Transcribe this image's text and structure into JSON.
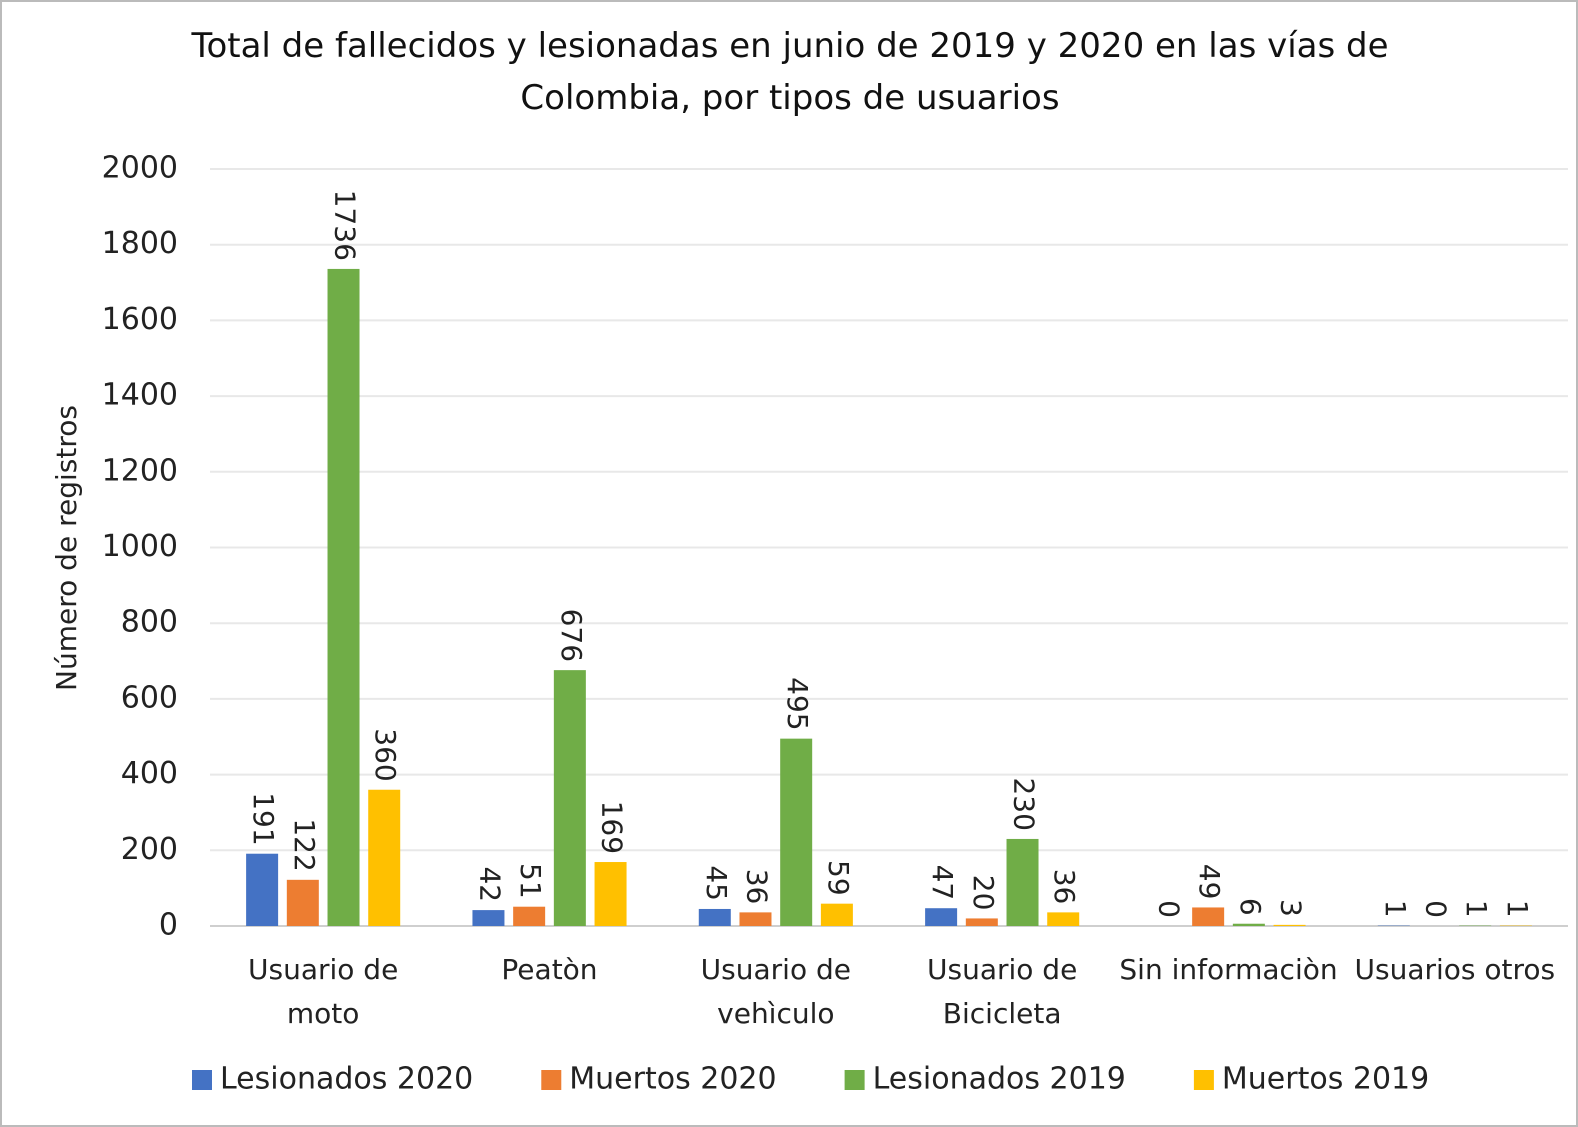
{
  "chart_data": {
    "type": "bar",
    "title": "Total de fallecidos y lesionadas en junio de 2019 y 2020 en las vías de Colombia, por tipos de usuarios",
    "y_label": "Número de registros",
    "categories": [
      "Usuario de moto",
      "Peatòn",
      "Usuario de vehìculo",
      "Usuario de Bicicleta",
      "Sin informaciòn",
      "Usuarios otros"
    ],
    "series": [
      {
        "name": "Lesionados 2020",
        "color": "#4472c4",
        "values": [
          191,
          42,
          45,
          47,
          0,
          1
        ]
      },
      {
        "name": "Muertos 2020",
        "color": "#ed7d31",
        "values": [
          122,
          51,
          36,
          20,
          49,
          0
        ]
      },
      {
        "name": "Lesionados 2019",
        "color": "#70ad47",
        "values": [
          1736,
          676,
          495,
          230,
          6,
          1
        ]
      },
      {
        "name": "Muertos 2019",
        "color": "#ffc000",
        "values": [
          360,
          169,
          59,
          36,
          3,
          1
        ]
      }
    ],
    "ylim": [
      0,
      2000
    ],
    "yticks": [
      0,
      200,
      400,
      600,
      800,
      1000,
      1200,
      1400,
      1600,
      1800,
      2000
    ],
    "grid": true,
    "legend": "bottom"
  }
}
